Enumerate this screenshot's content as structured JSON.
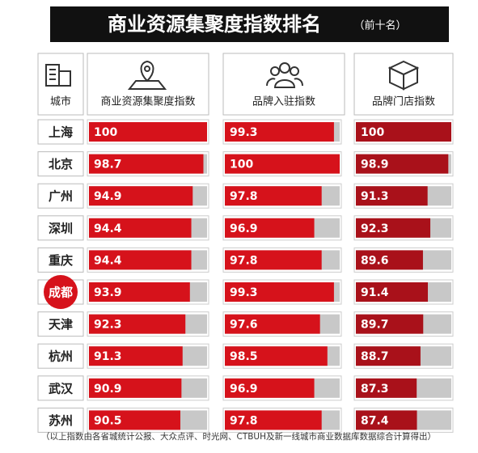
{
  "chart_data": {
    "type": "bar",
    "orientation": "horizontal",
    "title": "商业资源集聚度指数排名",
    "subtitle": "（前十名）",
    "category_label": "城市",
    "categories": [
      "上海",
      "北京",
      "广州",
      "深圳",
      "重庆",
      "成都",
      "天津",
      "杭州",
      "武汉",
      "苏州"
    ],
    "highlight": 5,
    "series": [
      {
        "name": "商业资源集聚度指数",
        "color": "#d6121b",
        "values": [
          100,
          98.7,
          94.9,
          94.4,
          94.4,
          93.9,
          92.3,
          91.3,
          90.9,
          90.5
        ],
        "xlim": [
          58,
          100
        ]
      },
      {
        "name": "品牌入驻指数",
        "color": "#d6121b",
        "values": [
          99.3,
          100,
          97.8,
          96.9,
          97.8,
          99.3,
          97.6,
          98.5,
          96.9,
          97.8
        ],
        "xlim": [
          86,
          100
        ]
      },
      {
        "name": "品牌门店指数",
        "color": "#a9111a",
        "values": [
          100,
          98.9,
          91.3,
          92.3,
          89.6,
          91.4,
          89.7,
          88.7,
          87.3,
          87.4
        ],
        "xlim": [
          65,
          100
        ]
      }
    ],
    "note": "（以上指数由各省城统计公报、大众点评、时光网、CTBUH及新一线城市商业数据库数据综合计算得出）"
  }
}
